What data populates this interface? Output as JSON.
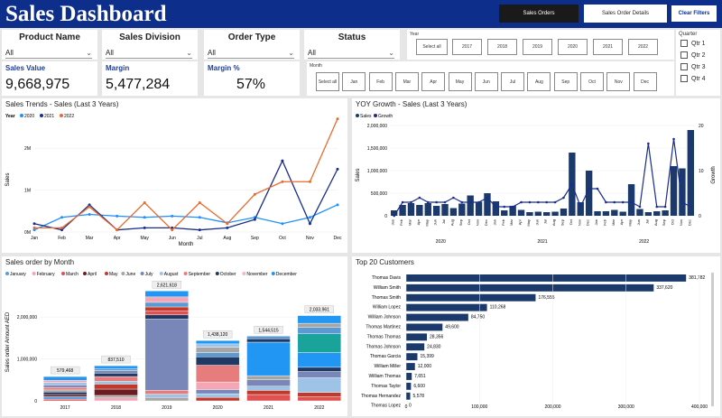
{
  "header": {
    "title": "Sales Dashboard",
    "nav": {
      "sales_orders": "Sales Orders",
      "sales_order_details": "Sales Order Details",
      "clear_filters": "Clear Filters"
    }
  },
  "filters": [
    {
      "label": "Product Name",
      "value": "All"
    },
    {
      "label": "Sales Division",
      "value": "All"
    },
    {
      "label": "Order Type",
      "value": "All"
    },
    {
      "label": "Status",
      "value": "All"
    }
  ],
  "kpis": [
    {
      "label": "Sales Value",
      "value": "9,668,975"
    },
    {
      "label": "Margin",
      "value": "5,477,284"
    },
    {
      "label": "Margin %",
      "value": "57%"
    }
  ],
  "year_slicer": {
    "label": "Year",
    "buttons": [
      "Select all",
      "2017",
      "2018",
      "2019",
      "2020",
      "2021",
      "2022"
    ]
  },
  "month_slicer": {
    "label": "Month",
    "buttons": [
      "Select all",
      "Jan",
      "Feb",
      "Mar",
      "Apr",
      "May",
      "Jun",
      "Jul",
      "Aug",
      "Sep",
      "Oct",
      "Nov",
      "Dec"
    ]
  },
  "quarter_slicer": {
    "label": "Quarter",
    "items": [
      "Qtr 1",
      "Qtr 2",
      "Qtr 3",
      "Qtr 4"
    ]
  },
  "colors": {
    "header": "#0d2e8a",
    "y2020": "#1e90ff",
    "y2021": "#1a2d8c",
    "y2022": "#e86a2e",
    "bar": "#1b3a6b"
  },
  "chart_data": [
    {
      "type": "line",
      "title": "Sales Trends - Sales (Last 3 Years)",
      "legend_title": "Year",
      "xlabel": "Month",
      "ylabel": "Sales",
      "categories": [
        "Jan",
        "Feb",
        "Mar",
        "Apr",
        "May",
        "Jun",
        "Jul",
        "Aug",
        "Sep",
        "Oct",
        "Nov",
        "Dec"
      ],
      "yticks": [
        "0M",
        "1M",
        "2M"
      ],
      "ylim": [
        0,
        2.8
      ],
      "series": [
        {
          "name": "2020",
          "values": [
            0.05,
            0.35,
            0.42,
            0.38,
            0.35,
            0.38,
            0.35,
            0.22,
            0.35,
            0.2,
            0.35,
            0.65
          ]
        },
        {
          "name": "2021",
          "values": [
            0.2,
            0.05,
            0.65,
            0.05,
            0.1,
            0.1,
            0.05,
            0.1,
            0.3,
            1.7,
            0.2,
            1.5
          ]
        },
        {
          "name": "2022",
          "values": [
            0.1,
            0.1,
            0.6,
            0.05,
            0.7,
            0.05,
            0.7,
            0.2,
            0.9,
            1.2,
            1.2,
            2.7
          ]
        }
      ]
    },
    {
      "type": "bar",
      "title": "YOY Growth - Sales (Last 3 Years)",
      "legend": [
        "Sales",
        "Growth"
      ],
      "ylabel": "Sales",
      "y2label": "Growth",
      "yticks": [
        "0",
        "500,000",
        "1,000,000",
        "1,500,000",
        "2,000,000"
      ],
      "ylim": [
        0,
        2000000
      ],
      "y2ticks": [
        "0",
        "10",
        "20"
      ],
      "y2lim": [
        0,
        20
      ],
      "year_labels": [
        "2020",
        "2021",
        "2022"
      ],
      "categories": [
        "Jan",
        "Feb",
        "Mar",
        "Apr",
        "May",
        "Jun",
        "Jul",
        "Aug",
        "Sep",
        "Oct",
        "Nov",
        "Dec",
        "Jan",
        "Feb",
        "Mar",
        "Apr",
        "May",
        "Jun",
        "Jul",
        "Aug",
        "Sep",
        "Oct",
        "Nov",
        "Dec",
        "Jan",
        "Feb",
        "Mar",
        "Apr",
        "May",
        "Jun",
        "Jul",
        "Aug",
        "Sep",
        "Oct",
        "Nov",
        "Dec"
      ],
      "values": [
        120000,
        240000,
        280000,
        240000,
        280000,
        220000,
        260000,
        170000,
        270000,
        450000,
        310000,
        500000,
        320000,
        120000,
        220000,
        130000,
        80000,
        90000,
        80000,
        90000,
        160000,
        1400000,
        300000,
        1000000,
        100000,
        100000,
        130000,
        90000,
        700000,
        150000,
        80000,
        100000,
        120000,
        1100000,
        1050000,
        1900000
      ],
      "growth": [
        0,
        3,
        3,
        4,
        3,
        3,
        3,
        4,
        3,
        3,
        3,
        4,
        2,
        2,
        2,
        3,
        3,
        3,
        3,
        3,
        4,
        7,
        2,
        6,
        6,
        3,
        3,
        3,
        3,
        2,
        16,
        2,
        2,
        17,
        3,
        2
      ]
    },
    {
      "type": "bar",
      "title": "Sales order by Month",
      "ylabel": "Sales order Amount AED",
      "stacked": true,
      "categories": [
        "2017",
        "2018",
        "2019",
        "2020",
        "2021",
        "2022"
      ],
      "ylim": [
        0,
        2800000
      ],
      "yticks": [
        "0",
        "1,000,000",
        "2,000,000"
      ],
      "totals": [
        579468,
        837510,
        2621618,
        1438120,
        1544515,
        2033961
      ],
      "total_labels": [
        "579,468",
        "837,510",
        "2,621,618",
        "1,438,120",
        "1,544,515",
        "2,033,961"
      ],
      "legend": [
        "January",
        "February",
        "March",
        "April",
        "May",
        "June",
        "July",
        "August",
        "September",
        "October",
        "November",
        "December"
      ],
      "legend_colors": [
        "#5b9bd5",
        "#f4a6b5",
        "#e05252",
        "#6b1c23",
        "#c0392b",
        "#a6a6a6",
        "#7986b8",
        "#9dc3e6",
        "#e77c7c",
        "#1f3864",
        "#f8b4c8",
        "#2196f3"
      ],
      "stacks": [
        [
          [
            "#e05252",
            40000
          ],
          [
            "#5b9bd5",
            60000
          ],
          [
            "#6b1c23",
            50000
          ],
          [
            "#1f3864",
            60000
          ],
          [
            "#a6a6a6",
            50000
          ],
          [
            "#e77c7c",
            60000
          ],
          [
            "#7986b8",
            60000
          ],
          [
            "#9dc3e6",
            60000
          ],
          [
            "#f4a6b5",
            50000
          ],
          [
            "#2196f3",
            89468
          ]
        ],
        [
          [
            "#f4a6b5",
            70000
          ],
          [
            "#a6a6a6",
            60000
          ],
          [
            "#6b1c23",
            150000
          ],
          [
            "#c0392b",
            120000
          ],
          [
            "#9dc3e6",
            70000
          ],
          [
            "#e77c7c",
            110000
          ],
          [
            "#1f3864",
            80000
          ],
          [
            "#7986b8",
            60000
          ],
          [
            "#5b9bd5",
            50000
          ],
          [
            "#2196f3",
            67510
          ]
        ],
        [
          [
            "#a6a6a6",
            80000
          ],
          [
            "#9dc3e6",
            80000
          ],
          [
            "#e77c7c",
            90000
          ],
          [
            "#7986b8",
            1700000
          ],
          [
            "#1f3864",
            100000
          ],
          [
            "#e05252",
            100000
          ],
          [
            "#c0392b",
            90000
          ],
          [
            "#5b9bd5",
            110000
          ],
          [
            "#f4a6b5",
            130000
          ],
          [
            "#2196f3",
            141618
          ]
        ],
        [
          [
            "#c0392b",
            80000
          ],
          [
            "#9dc3e6",
            90000
          ],
          [
            "#7986b8",
            100000
          ],
          [
            "#f4a6b5",
            180000
          ],
          [
            "#e77c7c",
            400000
          ],
          [
            "#1f3864",
            200000
          ],
          [
            "#5b9bd5",
            100000
          ],
          [
            "#a6a6a6",
            130000
          ],
          [
            "#9dc3e6",
            80000
          ],
          [
            "#2196f3",
            78120
          ]
        ],
        [
          [
            "#e05252",
            150000
          ],
          [
            "#c0392b",
            100000
          ],
          [
            "#9dc3e6",
            100000
          ],
          [
            "#7986b8",
            150000
          ],
          [
            "#a6a6a6",
            100000
          ],
          [
            "#2196f3",
            800000
          ],
          [
            "#1f3864",
            80000
          ],
          [
            "#5b9bd5",
            64515
          ]
        ],
        [
          [
            "#e05252",
            100000
          ],
          [
            "#c0392b",
            100000
          ],
          [
            "#9dc3e6",
            350000
          ],
          [
            "#7986b8",
            150000
          ],
          [
            "#1f3864",
            100000
          ],
          [
            "#2196f3",
            350000
          ],
          [
            "#1aa39a",
            450000
          ],
          [
            "#5b9bd5",
            150000
          ],
          [
            "#a6a6a6",
            100000
          ],
          [
            "#2196f3",
            183961
          ]
        ]
      ]
    },
    {
      "type": "bar",
      "orientation": "horizontal",
      "title": "Top 20 Customers",
      "xlim": [
        0,
        400000
      ],
      "xticks": [
        "0",
        "100,000",
        "200,000",
        "300,000",
        "400,000"
      ],
      "categories": [
        "Thomas Davis",
        "William Smith",
        "Thomas Smith",
        "William Lopez",
        "William Johnson",
        "Thomas Martinez",
        "Thomas Thomas",
        "Thomas Johnson",
        "Thomas Garcia",
        "William Miller",
        "William Thomas",
        "Thomas Taylor",
        "Thomas Hernandez",
        "Thomas Lopez"
      ],
      "values": [
        381782,
        337620,
        176555,
        110268,
        84750,
        49600,
        28356,
        24830,
        15399,
        12000,
        7651,
        6600,
        5578,
        0
      ],
      "labels": [
        "381,782",
        "337,620",
        "176,555",
        "110,268",
        "84,750",
        "49,600",
        "28,356",
        "24,830",
        "15,399",
        "12,000",
        "7,651",
        "6,600",
        "5,578",
        "0"
      ]
    }
  ]
}
